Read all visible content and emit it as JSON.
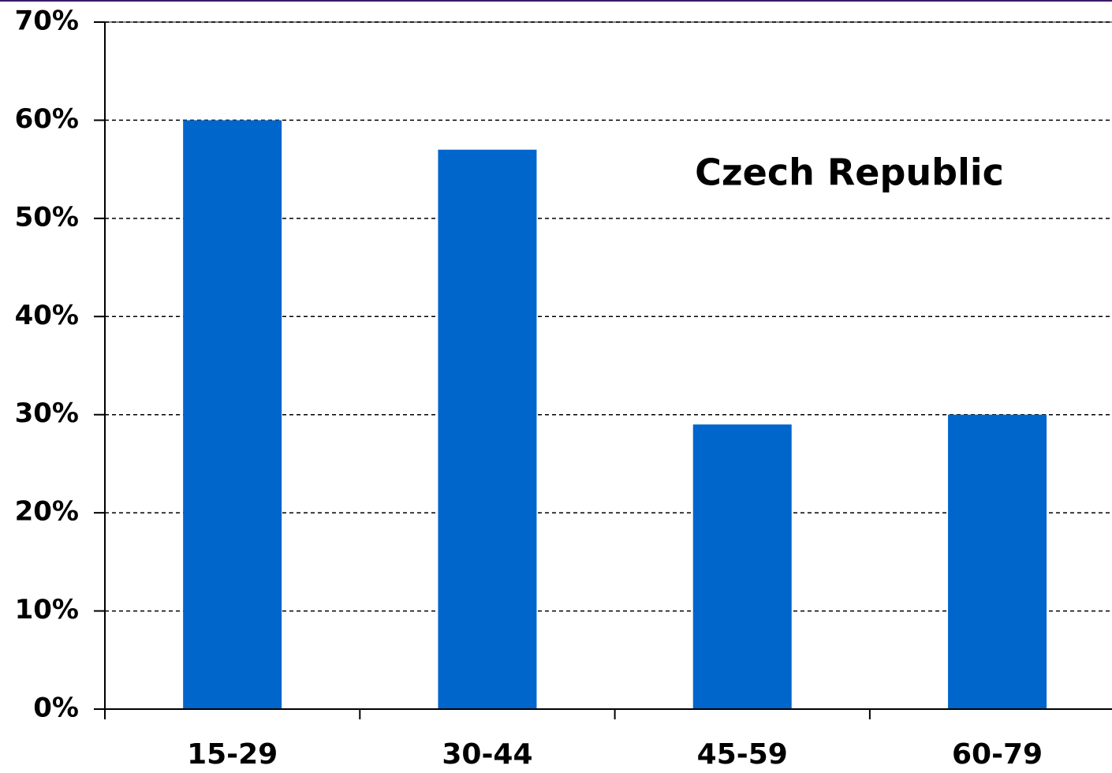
{
  "chart_data": {
    "type": "bar",
    "annotation": "Czech Republic",
    "categories": [
      "15-29",
      "30-44",
      "45-59",
      "60-79"
    ],
    "values": [
      60,
      57,
      29,
      30
    ],
    "color": "#0066cc",
    "ylim": [
      0,
      70
    ],
    "yticks": [
      {
        "value": 0,
        "label": "0%"
      },
      {
        "value": 10,
        "label": "10%"
      },
      {
        "value": 20,
        "label": "20%"
      },
      {
        "value": 30,
        "label": "30%"
      },
      {
        "value": 40,
        "label": "40%"
      },
      {
        "value": 50,
        "label": "50%"
      },
      {
        "value": 60,
        "label": "60%"
      },
      {
        "value": 70,
        "label": "70%"
      }
    ],
    "grid": true
  }
}
